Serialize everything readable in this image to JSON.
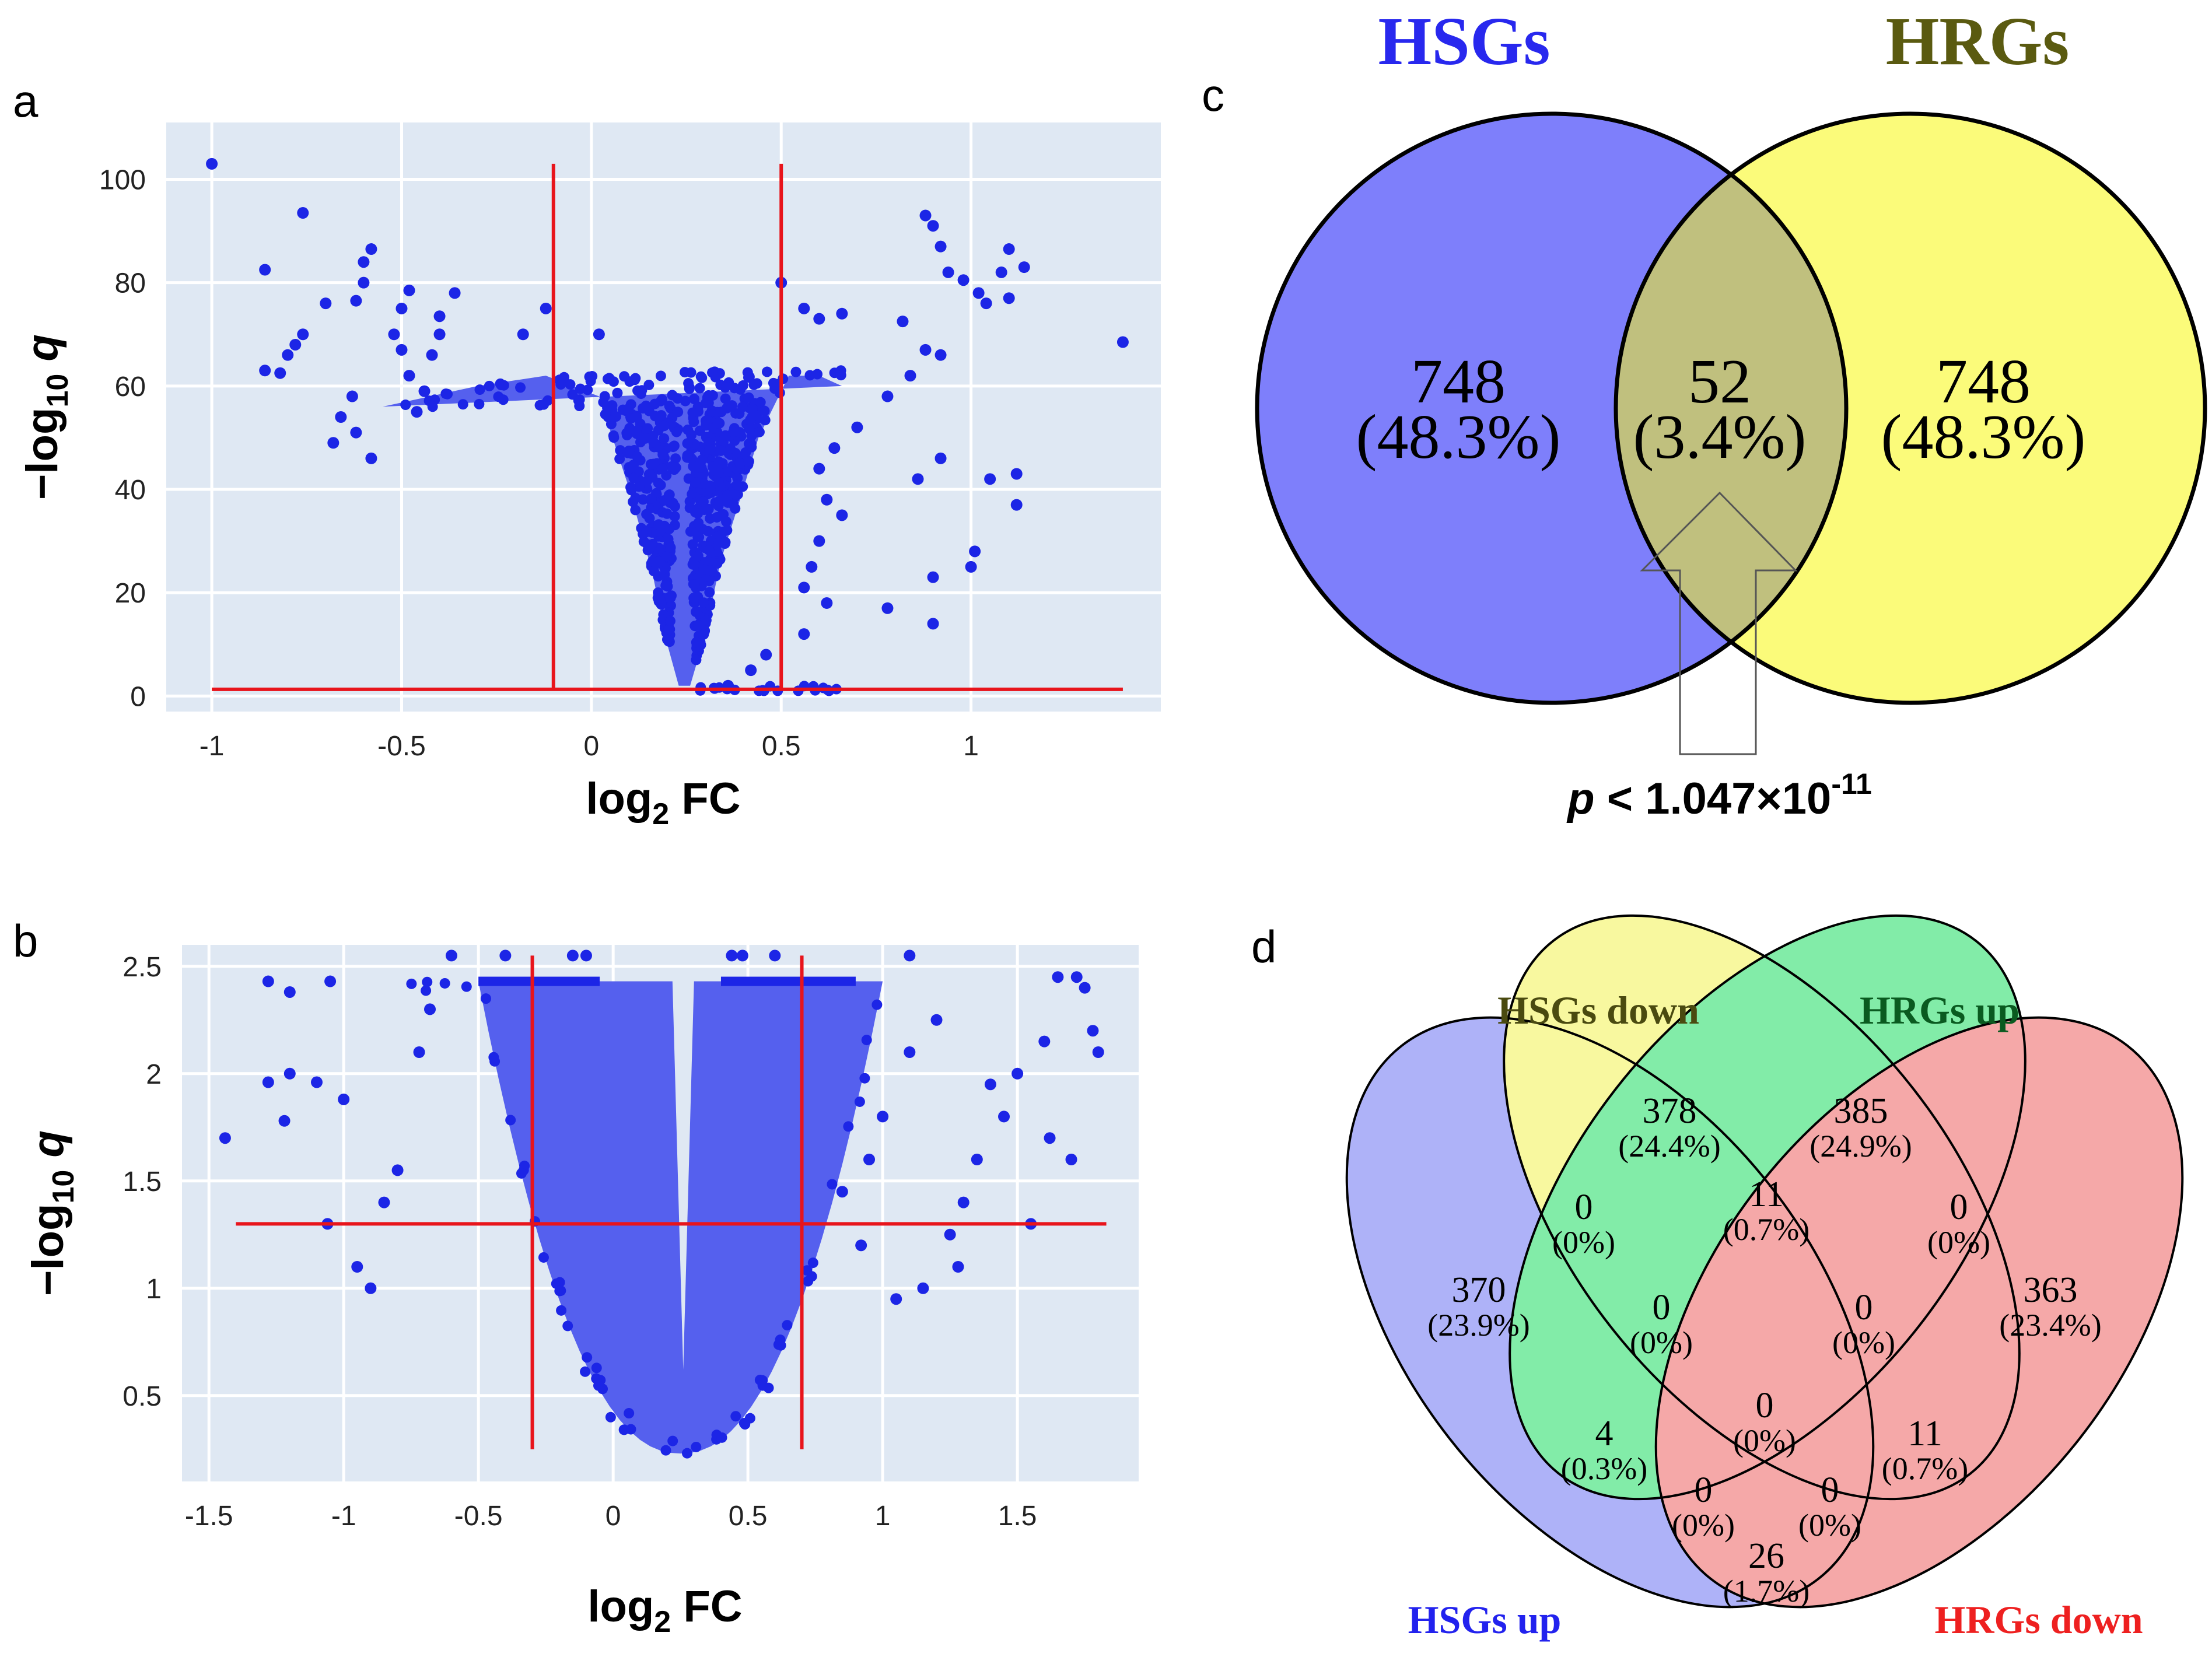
{
  "panels": {
    "a": {
      "label": "a"
    },
    "b": {
      "label": "b"
    },
    "c": {
      "label": "c"
    },
    "d": {
      "label": "d"
    }
  },
  "colors": {
    "plot_bg": "#dfe8f3",
    "point": "#1c25e6",
    "point_dense": "#5560ee",
    "threshold": "#e8141b",
    "hsg_blue": "#7e7ffb",
    "hrg_yellow": "#fbfb7a",
    "overlap": "#c0c07e",
    "hsg_title": "#2828ee",
    "hrg_title": "#5a5a10"
  },
  "chart_data": [
    {
      "type": "scatter",
      "panel": "a",
      "title": "",
      "xlabel": "log2 FC",
      "ylabel": "−log10 q",
      "xlim": [
        -1.12,
        1.5
      ],
      "ylim": [
        -3,
        111
      ],
      "xticks": [
        -1,
        -0.5,
        0,
        0.5,
        1
      ],
      "xtick_labels": [
        "-1",
        "-0.5",
        "0",
        "0.5",
        "1"
      ],
      "yticks": [
        0,
        20,
        40,
        60,
        80,
        100
      ],
      "ytick_labels": [
        "0",
        "20",
        "40",
        "60",
        "80",
        "100"
      ],
      "thresholds": {
        "x": [
          -0.1,
          0.5
        ],
        "y": 1.3,
        "x_span": [
          -1,
          1.4
        ],
        "y_span": [
          1.3,
          103
        ]
      },
      "outliers": [
        [
          -1,
          103
        ],
        [
          -0.76,
          93.5
        ],
        [
          -0.86,
          82.5
        ],
        [
          -0.58,
          86.5
        ],
        [
          -0.6,
          84
        ],
        [
          -0.6,
          80
        ],
        [
          -0.62,
          76.5
        ],
        [
          -0.7,
          76
        ],
        [
          -0.48,
          78.5
        ],
        [
          -0.5,
          75
        ],
        [
          -0.4,
          73.5
        ],
        [
          -0.36,
          78
        ],
        [
          -0.76,
          70
        ],
        [
          -0.78,
          68
        ],
        [
          -0.8,
          66
        ],
        [
          -0.86,
          63
        ],
        [
          -0.82,
          62.5
        ],
        [
          -0.63,
          58
        ],
        [
          -0.66,
          54
        ],
        [
          -0.62,
          51
        ],
        [
          -0.68,
          49
        ],
        [
          -0.5,
          67
        ],
        [
          -0.52,
          70
        ],
        [
          -0.48,
          62
        ],
        [
          -0.44,
          59
        ],
        [
          -0.46,
          55
        ],
        [
          -0.4,
          70
        ],
        [
          -0.42,
          66
        ],
        [
          -0.58,
          46
        ],
        [
          -0.12,
          75
        ],
        [
          -0.18,
          70
        ],
        [
          0.02,
          70
        ],
        [
          0.56,
          75
        ],
        [
          0.5,
          80
        ],
        [
          0.6,
          73
        ],
        [
          0.66,
          74
        ],
        [
          0.82,
          72.5
        ],
        [
          0.88,
          93
        ],
        [
          0.9,
          91
        ],
        [
          0.92,
          87
        ],
        [
          0.94,
          82
        ],
        [
          0.98,
          80.5
        ],
        [
          1.08,
          82
        ],
        [
          1.1,
          86.5
        ],
        [
          1.14,
          83
        ],
        [
          1.02,
          78
        ],
        [
          1.04,
          76
        ],
        [
          1.1,
          77
        ],
        [
          0.92,
          66
        ],
        [
          0.88,
          67
        ],
        [
          0.84,
          62
        ],
        [
          0.78,
          58
        ],
        [
          1.05,
          42
        ],
        [
          1.12,
          43
        ],
        [
          1.12,
          37
        ],
        [
          1.01,
          28
        ],
        [
          1.0,
          25
        ],
        [
          0.9,
          23
        ],
        [
          0.9,
          14
        ],
        [
          0.78,
          17
        ],
        [
          0.86,
          42
        ],
        [
          0.92,
          46
        ],
        [
          1.4,
          68.5
        ],
        [
          0.7,
          52
        ],
        [
          0.64,
          48
        ],
        [
          0.6,
          44
        ],
        [
          0.62,
          38
        ],
        [
          0.66,
          35
        ],
        [
          0.6,
          30
        ],
        [
          0.58,
          25
        ],
        [
          0.56,
          21
        ],
        [
          0.62,
          18
        ],
        [
          0.56,
          12
        ],
        [
          0.46,
          8
        ],
        [
          0.42,
          5
        ],
        [
          0.36,
          2
        ]
      ],
      "cloud": {
        "min_x": 0.24,
        "left_edge": [
          [
            -0.55,
            56
          ],
          [
            -0.3,
            60
          ],
          [
            -0.12,
            62
          ],
          [
            0.02,
            58
          ],
          [
            0.1,
            40
          ],
          [
            0.16,
            24
          ],
          [
            0.2,
            10
          ],
          [
            0.23,
            2
          ]
        ],
        "right_edge": [
          [
            0.26,
            2
          ],
          [
            0.3,
            12
          ],
          [
            0.34,
            26
          ],
          [
            0.4,
            40
          ],
          [
            0.44,
            50
          ],
          [
            0.52,
            62
          ],
          [
            0.6,
            62
          ],
          [
            0.66,
            60
          ]
        ]
      }
    },
    {
      "type": "scatter",
      "panel": "b",
      "title": "",
      "xlabel": "log2 FC",
      "ylabel": "−log10 q",
      "xlim": [
        -1.6,
        1.95
      ],
      "ylim": [
        0.1,
        2.6
      ],
      "xticks": [
        -1.5,
        -1,
        -0.5,
        0,
        0.5,
        1,
        1.5
      ],
      "xtick_labels": [
        "-1.5",
        "-1",
        "-0.5",
        "0",
        "0.5",
        "1",
        "1.5"
      ],
      "yticks": [
        0.5,
        1,
        1.5,
        2,
        2.5
      ],
      "ytick_labels": [
        "0.5",
        "1",
        "1.5",
        "2",
        "2.5"
      ],
      "thresholds": {
        "x": [
          -0.3,
          0.7
        ],
        "y": 1.3,
        "x_span": [
          -1.4,
          1.83
        ],
        "y_span": [
          0.25,
          2.55
        ]
      },
      "outliers": [
        [
          -1.44,
          1.7
        ],
        [
          -1.28,
          2.43
        ],
        [
          -1.28,
          1.96
        ],
        [
          -1.2,
          2.0
        ],
        [
          -1.22,
          1.78
        ],
        [
          -1.2,
          2.38
        ],
        [
          -1.05,
          2.43
        ],
        [
          -1.1,
          1.96
        ],
        [
          -1.0,
          1.88
        ],
        [
          -1.06,
          1.3
        ],
        [
          -0.9,
          1.0
        ],
        [
          -0.95,
          1.1
        ],
        [
          -0.85,
          1.4
        ],
        [
          -0.8,
          1.55
        ],
        [
          -0.72,
          2.1
        ],
        [
          -0.68,
          2.3
        ],
        [
          -0.6,
          2.55
        ],
        [
          -0.4,
          2.55
        ],
        [
          -0.15,
          2.55
        ],
        [
          -0.1,
          2.55
        ],
        [
          0.44,
          2.55
        ],
        [
          0.48,
          2.55
        ],
        [
          0.6,
          2.55
        ],
        [
          1.1,
          2.55
        ],
        [
          1.6,
          2.15
        ],
        [
          1.65,
          2.45
        ],
        [
          1.72,
          2.45
        ],
        [
          1.75,
          2.4
        ],
        [
          1.78,
          2.2
        ],
        [
          1.8,
          2.1
        ],
        [
          1.5,
          2.0
        ],
        [
          1.45,
          1.8
        ],
        [
          1.4,
          1.95
        ],
        [
          1.35,
          1.6
        ],
        [
          1.3,
          1.4
        ],
        [
          1.25,
          1.25
        ],
        [
          1.28,
          1.1
        ],
        [
          1.62,
          1.7
        ],
        [
          1.7,
          1.6
        ],
        [
          1.55,
          1.3
        ],
        [
          1.15,
          1.0
        ],
        [
          1.05,
          0.95
        ],
        [
          0.92,
          1.2
        ],
        [
          0.85,
          1.45
        ],
        [
          0.95,
          1.6
        ],
        [
          1.0,
          1.8
        ],
        [
          1.1,
          2.1
        ],
        [
          1.2,
          2.25
        ]
      ],
      "cloud": {
        "min_x": 0.25,
        "top": 2.43,
        "bottom": 0.23
      }
    }
  ],
  "venn3": {
    "hsg_title": "HSGs",
    "hrg_title": "HRGs",
    "left": {
      "count": "748",
      "pct": "(48.3%)"
    },
    "mid": {
      "count": "52",
      "pct": "(3.4%)"
    },
    "right": {
      "count": "748",
      "pct": "(48.3%)"
    },
    "p_label": "p",
    "p_rest": " < 1.047×10",
    "p_exp": "-11"
  },
  "venn4": {
    "labels": {
      "hsgs_down": "HSGs down",
      "hrgs_up": "HRGs up",
      "hsgs_up": "HSGs up",
      "hrgs_down": "HRGs down"
    },
    "label_colors": {
      "hsgs_down": "#4a4a10",
      "hrgs_up": "#0a5a20",
      "hsgs_up": "#2222ee",
      "hrgs_down": "#ee2020"
    },
    "regions": {
      "hsgs_down_only": {
        "count": "378",
        "pct": "(24.4%)"
      },
      "hrgs_up_only": {
        "count": "385",
        "pct": "(24.9%)"
      },
      "hsgs_up_only": {
        "count": "370",
        "pct": "(23.9%)"
      },
      "hrgs_down_only": {
        "count": "363",
        "pct": "(23.4%)"
      },
      "down_and_hrgup": {
        "count": "11",
        "pct": "(0.7%)"
      },
      "hsgup_and_hsgdown": {
        "count": "0",
        "pct": "(0%)"
      },
      "hrgup_and_hrgdown": {
        "count": "0",
        "pct": "(0%)"
      },
      "center_left": {
        "count": "0",
        "pct": "(0%)"
      },
      "center_right": {
        "count": "0",
        "pct": "(0%)"
      },
      "center": {
        "count": "0",
        "pct": "(0%)"
      },
      "hsgup_and_hrgup": {
        "count": "4",
        "pct": "(0.3%)"
      },
      "hrgdown_and_hsgdown": {
        "count": "11",
        "pct": "(0.7%)"
      },
      "bottom_left": {
        "count": "0",
        "pct": "(0%)"
      },
      "bottom_right": {
        "count": "0",
        "pct": "(0%)"
      },
      "hsgup_and_hrgdown": {
        "count": "26",
        "pct": "(1.7%)"
      }
    }
  }
}
